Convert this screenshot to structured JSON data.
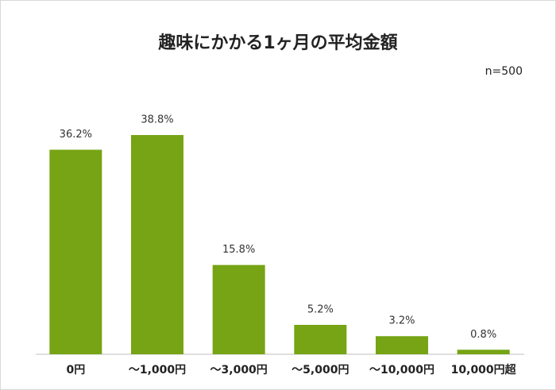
{
  "chart_data": {
    "type": "bar",
    "title": "趣味にかかる1ヶ月の平均金額",
    "note": "n=500",
    "categories": [
      "0円",
      "～1,000円",
      "～3,000円",
      "～5,000円",
      "～10,000円",
      "10,000円超"
    ],
    "values": [
      36.2,
      38.8,
      15.8,
      5.2,
      3.2,
      0.8
    ],
    "value_labels": [
      "36.2%",
      "38.8%",
      "15.8%",
      "5.2%",
      "3.2%",
      "0.8%"
    ],
    "color": "#76a414"
  }
}
